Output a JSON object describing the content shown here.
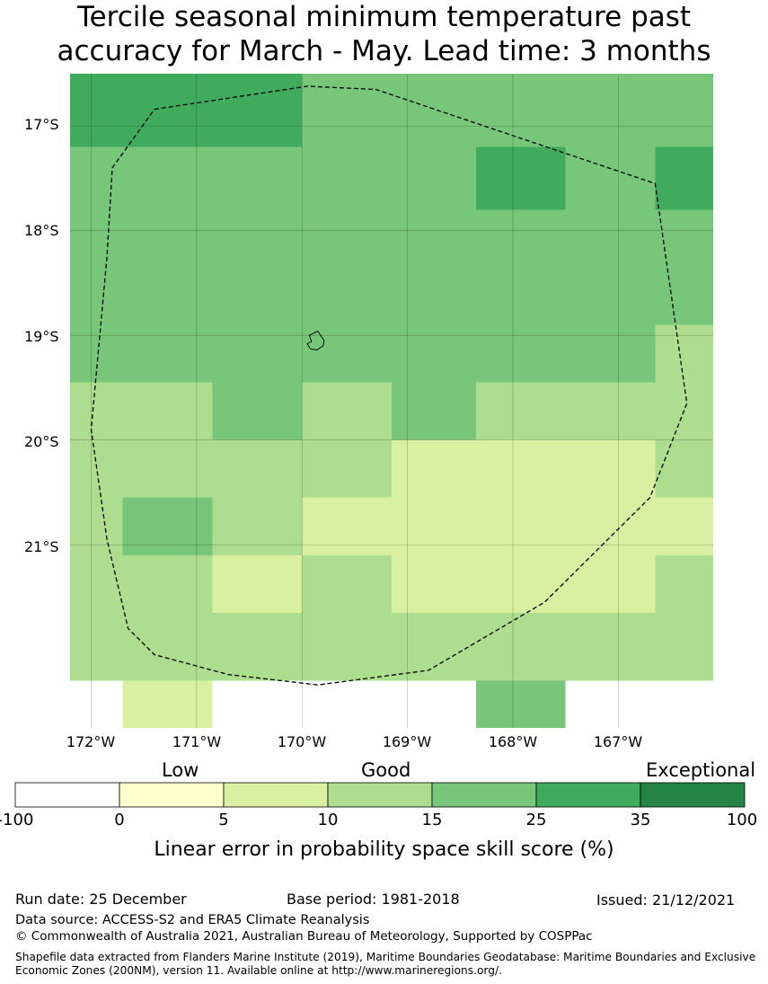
{
  "title": {
    "line1": "Tercile seasonal minimum temperature past",
    "line2": "accuracy for March - May. Lead time: 3 months"
  },
  "map": {
    "lat_labels": [
      "17°S",
      "18°S",
      "19°S",
      "20°S",
      "21°S"
    ],
    "lon_labels": [
      "172°W",
      "171°W",
      "170°W",
      "169°W",
      "168°W",
      "167°W"
    ],
    "grid_cells": [
      {
        "lon": [
          -172.2,
          -170.0
        ],
        "lat": [
          -16.5,
          -17.2
        ],
        "cat": "25-35"
      },
      {
        "lon": [
          -170.0,
          -166.1
        ],
        "lat": [
          -16.5,
          -17.2
        ],
        "cat": "15-25"
      },
      {
        "lon": [
          -172.2,
          -168.35
        ],
        "lat": [
          -17.2,
          -17.8
        ],
        "cat": "15-25"
      },
      {
        "lon": [
          -168.35,
          -167.5
        ],
        "lat": [
          -17.2,
          -17.8
        ],
        "cat": "25-35"
      },
      {
        "lon": [
          -167.5,
          -166.65
        ],
        "lat": [
          -17.2,
          -17.8
        ],
        "cat": "15-25"
      },
      {
        "lon": [
          -166.65,
          -166.1
        ],
        "lat": [
          -17.2,
          -17.8
        ],
        "cat": "25-35"
      },
      {
        "lon": [
          -172.2,
          -166.1
        ],
        "lat": [
          -17.8,
          -18.9
        ],
        "cat": "15-25"
      },
      {
        "lon": [
          -172.2,
          -166.65
        ],
        "lat": [
          -18.9,
          -19.45
        ],
        "cat": "15-25"
      },
      {
        "lon": [
          -166.65,
          -166.1
        ],
        "lat": [
          -18.9,
          -19.45
        ],
        "cat": "10-15"
      },
      {
        "lon": [
          -172.2,
          -170.85
        ],
        "lat": [
          -19.45,
          -20.0
        ],
        "cat": "10-15"
      },
      {
        "lon": [
          -170.85,
          -170.0
        ],
        "lat": [
          -19.45,
          -20.0
        ],
        "cat": "15-25"
      },
      {
        "lon": [
          -170.0,
          -169.15
        ],
        "lat": [
          -19.45,
          -20.0
        ],
        "cat": "10-15"
      },
      {
        "lon": [
          -169.15,
          -168.35
        ],
        "lat": [
          -19.45,
          -20.0
        ],
        "cat": "15-25"
      },
      {
        "lon": [
          -168.35,
          -166.1
        ],
        "lat": [
          -19.45,
          -20.0
        ],
        "cat": "10-15"
      },
      {
        "lon": [
          -172.2,
          -169.15
        ],
        "lat": [
          -20.0,
          -20.55
        ],
        "cat": "10-15"
      },
      {
        "lon": [
          -169.15,
          -166.65
        ],
        "lat": [
          -20.0,
          -20.55
        ],
        "cat": "5-10"
      },
      {
        "lon": [
          -166.65,
          -166.1
        ],
        "lat": [
          -20.0,
          -20.55
        ],
        "cat": "10-15"
      },
      {
        "lon": [
          -172.2,
          -171.7
        ],
        "lat": [
          -20.55,
          -21.1
        ],
        "cat": "10-15"
      },
      {
        "lon": [
          -171.7,
          -170.85
        ],
        "lat": [
          -20.55,
          -21.1
        ],
        "cat": "15-25"
      },
      {
        "lon": [
          -170.85,
          -170.0
        ],
        "lat": [
          -20.55,
          -21.1
        ],
        "cat": "10-15"
      },
      {
        "lon": [
          -170.0,
          -166.1
        ],
        "lat": [
          -20.55,
          -21.1
        ],
        "cat": "5-10"
      },
      {
        "lon": [
          -172.2,
          -170.85
        ],
        "lat": [
          -21.1,
          -21.65
        ],
        "cat": "10-15"
      },
      {
        "lon": [
          -170.85,
          -170.0
        ],
        "lat": [
          -21.1,
          -21.65
        ],
        "cat": "5-10"
      },
      {
        "lon": [
          -170.0,
          -169.15
        ],
        "lat": [
          -21.1,
          -21.65
        ],
        "cat": "10-15"
      },
      {
        "lon": [
          -169.15,
          -166.65
        ],
        "lat": [
          -21.1,
          -21.65
        ],
        "cat": "5-10"
      },
      {
        "lon": [
          -166.65,
          -166.1
        ],
        "lat": [
          -21.1,
          -21.65
        ],
        "cat": "10-15"
      },
      {
        "lon": [
          -172.2,
          -166.1
        ],
        "lat": [
          -21.65,
          -22.3
        ],
        "cat": "10-15"
      },
      {
        "lon": [
          -171.7,
          -170.85
        ],
        "lat": [
          -22.3,
          -22.75
        ],
        "cat": "5-10"
      },
      {
        "lon": [
          -168.35,
          -167.5
        ],
        "lat": [
          -22.3,
          -22.75
        ],
        "cat": "15-25"
      }
    ],
    "eez_boundary": [
      [
        -171.4,
        -16.84
      ],
      [
        -169.95,
        -16.62
      ],
      [
        -169.3,
        -16.65
      ],
      [
        -166.65,
        -17.55
      ],
      [
        -166.35,
        -19.65
      ],
      [
        -166.7,
        -20.55
      ],
      [
        -167.7,
        -21.55
      ],
      [
        -168.8,
        -22.2
      ],
      [
        -169.85,
        -22.34
      ],
      [
        -170.7,
        -22.24
      ],
      [
        -171.4,
        -22.05
      ],
      [
        -171.65,
        -21.8
      ],
      [
        -171.85,
        -20.95
      ],
      [
        -172.0,
        -19.9
      ],
      [
        -171.85,
        -18.25
      ],
      [
        -171.8,
        -17.4
      ],
      [
        -171.4,
        -16.84
      ]
    ],
    "island": [
      [
        -169.93,
        -19.0
      ],
      [
        -169.85,
        -18.96
      ],
      [
        -169.79,
        -19.05
      ],
      [
        -169.8,
        -19.1
      ],
      [
        -169.86,
        -19.14
      ],
      [
        -169.92,
        -19.13
      ],
      [
        -169.95,
        -19.08
      ],
      [
        -169.91,
        -19.06
      ],
      [
        -169.93,
        -19.0
      ]
    ]
  },
  "colors": {
    "-100-0": "#ffffff",
    "0-5": "#ffffcc",
    "5-10": "#d9f0a3",
    "10-15": "#addd8e",
    "15-25": "#78c679",
    "25-35": "#41ab5d",
    "35-100": "#238443"
  },
  "colorbar": {
    "categories": [
      "Low",
      "Good",
      "Exceptional"
    ],
    "ticks": [
      "-100",
      "0",
      "5",
      "10",
      "15",
      "25",
      "35",
      "100"
    ],
    "bins": [
      "-100-0",
      "0-5",
      "5-10",
      "10-15",
      "15-25",
      "25-35",
      "35-100"
    ],
    "label": "Linear error in probability space skill score (%)"
  },
  "footer": {
    "run_date": "Run date: 25 December",
    "base_period": "Base period: 1981-2018",
    "issued": "Issued: 21/12/2021",
    "data_source": "Data source: ACCESS-S2 and ERA5 Climate Reanalysis",
    "copyright": "© Commonwealth of Australia 2021, Australian Bureau of Meteorology, Supported by COSPPac",
    "shapefile_line1": "Shapefile data extracted from Flanders Marine Institute (2019), Maritime Boundaries Geodatabase: Maritime Boundaries and Exclusive",
    "shapefile_line2": "Economic Zones (200NM), version 11. Available online at http://www.marineregions.org/."
  }
}
